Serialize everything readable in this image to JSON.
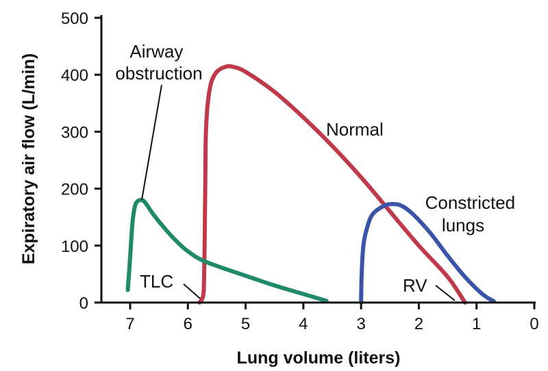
{
  "chart_data": {
    "type": "line",
    "title": "",
    "xlabel": "Lung volume (liters)",
    "ylabel": "Expiratory air flow (L/min)",
    "xlim": [
      7.5,
      0
    ],
    "ylim": [
      0,
      500
    ],
    "x_reversed": true,
    "grid": false,
    "x_ticks": [
      7,
      6,
      5,
      4,
      3,
      2,
      1,
      0
    ],
    "y_ticks": [
      0,
      100,
      200,
      300,
      400,
      500
    ],
    "series": [
      {
        "name": "Normal",
        "color": "#c0394b",
        "x": [
          5.8,
          5.76,
          5.73,
          5.72,
          5.71,
          5.7,
          5.69,
          5.66,
          5.6,
          5.5,
          5.35,
          5.22,
          5.0,
          4.5,
          4.0,
          3.5,
          3.0,
          2.5,
          2.0,
          1.5,
          1.2
        ],
        "y": [
          0,
          5,
          15,
          40,
          100,
          200,
          290,
          345,
          385,
          405,
          414,
          414,
          405,
          370,
          325,
          275,
          220,
          160,
          100,
          45,
          0
        ]
      },
      {
        "name": "Airway obstruction",
        "color": "#1e8a6a",
        "x": [
          7.04,
          7.0,
          6.96,
          6.92,
          6.88,
          6.82,
          6.76,
          6.7,
          6.6,
          6.4,
          6.2,
          6.0,
          5.7,
          5.0,
          4.5,
          4.0,
          3.6
        ],
        "y": [
          22,
          80,
          140,
          168,
          177,
          180,
          178,
          170,
          155,
          130,
          108,
          90,
          72,
          47,
          30,
          15,
          3
        ]
      },
      {
        "name": "Constricted lungs",
        "color": "#3954a8",
        "x": [
          3.0,
          2.99,
          2.96,
          2.9,
          2.8,
          2.6,
          2.45,
          2.3,
          2.1,
          1.8,
          1.5,
          1.2,
          0.9,
          0.7
        ],
        "y": [
          0,
          50,
          100,
          130,
          155,
          170,
          173,
          170,
          155,
          122,
          82,
          45,
          15,
          2
        ]
      }
    ],
    "annotations": [
      {
        "id": "airway",
        "lines": [
          "Airway",
          "obstruction"
        ],
        "points_to_series": "Airway obstruction"
      },
      {
        "id": "normal",
        "lines": [
          "Normal"
        ],
        "points_to_series": "Normal"
      },
      {
        "id": "constricted",
        "lines": [
          "Constricted",
          "lungs"
        ],
        "points_to_series": "Constricted lungs"
      },
      {
        "id": "tlc",
        "lines": [
          "TLC"
        ],
        "points_to_series": "Normal"
      },
      {
        "id": "rv",
        "lines": [
          "RV"
        ],
        "points_to_series": "Normal"
      }
    ]
  }
}
